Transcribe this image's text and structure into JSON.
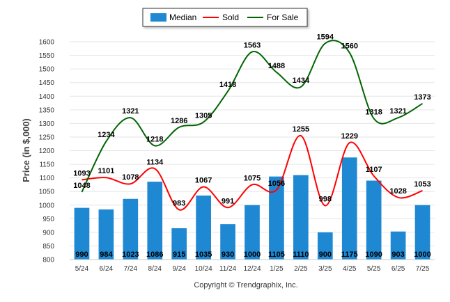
{
  "chart_data": {
    "type": "bar",
    "title": "",
    "xlabel": "",
    "ylabel": "Price (in $,000)",
    "ylim": [
      800,
      1600
    ],
    "yticks": [
      800,
      850,
      900,
      950,
      1000,
      1050,
      1100,
      1150,
      1200,
      1250,
      1300,
      1350,
      1400,
      1450,
      1500,
      1550,
      1600
    ],
    "grid": true,
    "legend_position": "top-center",
    "categories": [
      "5/24",
      "6/24",
      "7/24",
      "8/24",
      "9/24",
      "10/24",
      "11/24",
      "12/24",
      "1/25",
      "2/25",
      "3/25",
      "4/25",
      "5/25",
      "6/25",
      "7/25"
    ],
    "series": [
      {
        "name": "Median",
        "type": "bar",
        "color": "#1f88d2",
        "values": [
          990,
          984,
          1023,
          1086,
          915,
          1035,
          930,
          1000,
          1105,
          1110,
          900,
          1175,
          1090,
          903,
          1000
        ]
      },
      {
        "name": "Sold",
        "type": "line",
        "color": "#ff0000",
        "values": [
          1093,
          1101,
          1078,
          1134,
          983,
          1067,
          991,
          1075,
          1056,
          1255,
          998,
          1229,
          1107,
          1028,
          1053
        ]
      },
      {
        "name": "For Sale",
        "type": "line",
        "color": "#006400",
        "values": [
          1048,
          1234,
          1321,
          1218,
          1286,
          1305,
          1418,
          1563,
          1488,
          1434,
          1594,
          1560,
          1318,
          1321,
          1373
        ]
      }
    ]
  },
  "footer": {
    "copyright": "Copyright © Trendgraphix, Inc."
  }
}
